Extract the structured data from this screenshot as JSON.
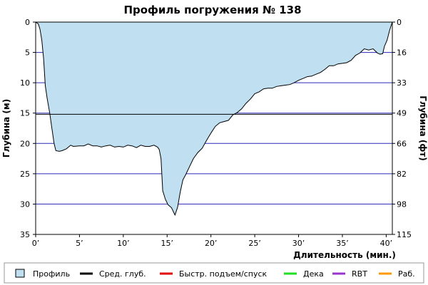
{
  "chart_data": {
    "type": "area",
    "title": "Профиль погружения № 138",
    "xlabel": "Длительность (мин.)",
    "ylabel_left": "Глубина (м)",
    "ylabel_right": "Глубина (фт)",
    "x_ticks": [
      "0’",
      "5’",
      "10’",
      "15’",
      "20’",
      "25’",
      "30’",
      "35’",
      "40’"
    ],
    "x_tick_values": [
      0,
      5,
      10,
      15,
      20,
      25,
      30,
      35,
      40
    ],
    "y_ticks_m": [
      "0",
      "5",
      "10",
      "15",
      "20",
      "25",
      "30",
      "35"
    ],
    "y_tick_values_m": [
      0,
      5,
      10,
      15,
      20,
      25,
      30,
      35
    ],
    "y_ticks_ft": [
      "0",
      "16",
      "33",
      "49",
      "66",
      "82",
      "98",
      "115"
    ],
    "xlim": [
      0,
      40.7
    ],
    "ylim": [
      0,
      35
    ],
    "y_inverted": true,
    "grid": true,
    "avg_depth_m": 15.2,
    "legend": [
      {
        "label": "Профиль",
        "color": "#c0dff0",
        "kind": "box"
      },
      {
        "label": "Сред. глуб.",
        "color": "#000000",
        "kind": "line"
      },
      {
        "label": "Быстр. подъем/спуск",
        "color": "#e00000",
        "kind": "line"
      },
      {
        "label": "Дека",
        "color": "#22dd22",
        "kind": "line"
      },
      {
        "label": "RBT",
        "color": "#9933cc",
        "kind": "line"
      },
      {
        "label": "Раб.",
        "color": "#ff9900",
        "kind": "line"
      }
    ],
    "series": [
      {
        "name": "Профиль",
        "x": [
          0,
          0.3,
          0.5,
          0.7,
          0.9,
          1.1,
          1.3,
          1.6,
          1.8,
          2.1,
          2.3,
          2.7,
          3.0,
          3.5,
          4.0,
          4.3,
          5.0,
          5.5,
          6.0,
          6.5,
          7.0,
          7.5,
          8.0,
          8.5,
          9.0,
          9.5,
          10.0,
          10.5,
          11.0,
          11.5,
          12.0,
          12.5,
          13.0,
          13.5,
          13.9,
          14.1,
          14.3,
          14.5,
          14.8,
          15.1,
          15.5,
          15.9,
          16.2,
          16.5,
          16.8,
          17.1,
          17.5,
          18.0,
          18.5,
          19.0,
          19.5,
          20.0,
          20.5,
          21.0,
          21.5,
          22.0,
          22.5,
          23.0,
          23.5,
          24.0,
          24.5,
          25.0,
          25.5,
          26.0,
          26.5,
          27.0,
          27.5,
          28.0,
          28.5,
          29.0,
          29.5,
          30.0,
          30.5,
          31.0,
          31.5,
          32.0,
          32.5,
          33.0,
          33.5,
          34.0,
          34.5,
          35.0,
          35.5,
          36.0,
          36.5,
          37.0,
          37.5,
          38.0,
          38.5,
          39.0,
          39.3,
          39.6,
          39.8,
          40.1,
          40.4,
          40.7
        ],
        "y": [
          0,
          0.3,
          1.2,
          3.0,
          6.0,
          10.5,
          12.5,
          15.0,
          17.0,
          20.0,
          21.2,
          21.3,
          21.2,
          20.9,
          20.3,
          20.5,
          20.4,
          20.4,
          20.1,
          20.4,
          20.4,
          20.6,
          20.4,
          20.3,
          20.6,
          20.5,
          20.6,
          20.3,
          20.4,
          20.7,
          20.3,
          20.5,
          20.5,
          20.3,
          20.6,
          21.0,
          22.5,
          27.8,
          29.2,
          30.1,
          30.6,
          31.8,
          30.5,
          28.0,
          26.0,
          25.2,
          24.0,
          22.5,
          21.5,
          20.8,
          19.5,
          18.3,
          17.2,
          16.6,
          16.4,
          16.2,
          15.3,
          14.9,
          14.3,
          13.4,
          12.7,
          11.8,
          11.5,
          11.0,
          10.9,
          10.9,
          10.6,
          10.5,
          10.4,
          10.3,
          10.0,
          9.6,
          9.3,
          9.0,
          8.9,
          8.6,
          8.3,
          7.8,
          7.2,
          7.2,
          6.9,
          6.8,
          6.7,
          6.3,
          5.5,
          5.1,
          4.4,
          4.6,
          4.4,
          5.1,
          5.3,
          5.2,
          4.0,
          3.0,
          1.3,
          0
        ],
        "color": "#000000",
        "fill": "#c0dff0"
      }
    ]
  }
}
